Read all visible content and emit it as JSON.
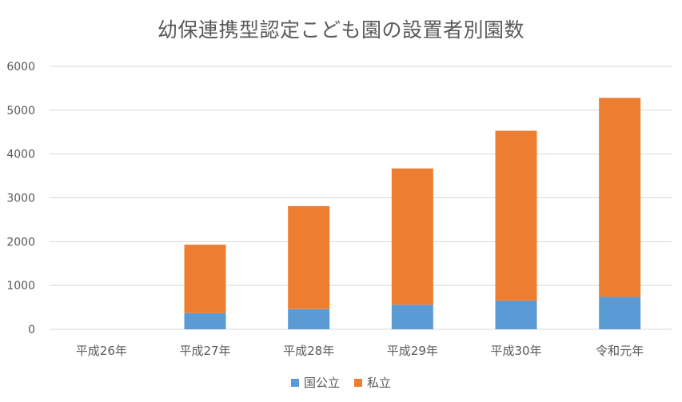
{
  "colors": {
    "public": "#5B9BD5",
    "private": "#ED7D31",
    "grid": "#d9d9d9",
    "text": "#595959"
  },
  "chart_data": {
    "type": "bar",
    "stacked": true,
    "title": "幼保連携型認定こども園の設置者別園数",
    "xlabel": "",
    "ylabel": "",
    "ylim": [
      0,
      6000
    ],
    "yticks": [
      "0",
      "1000",
      "2000",
      "3000",
      "4000",
      "5000",
      "6000"
    ],
    "categories": [
      "平成26年",
      "平成27年",
      "平成28年",
      "平成29年",
      "平成30年",
      "令和元年"
    ],
    "series": [
      {
        "name": "国公立",
        "values": [
          0,
          370,
          460,
          560,
          650,
          740
        ]
      },
      {
        "name": "私立",
        "values": [
          0,
          1560,
          2350,
          3110,
          3880,
          4540
        ]
      }
    ],
    "grid": true,
    "legend_position": "bottom"
  }
}
